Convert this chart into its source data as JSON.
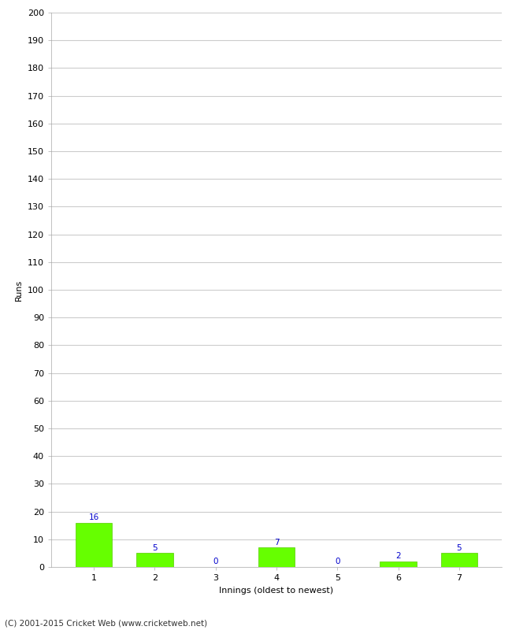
{
  "categories": [
    1,
    2,
    3,
    4,
    5,
    6,
    7
  ],
  "values": [
    16,
    5,
    0,
    7,
    0,
    2,
    5
  ],
  "bar_color": "#66ff00",
  "bar_edge_color": "#55cc00",
  "label_color": "#0000cc",
  "xlabel": "Innings (oldest to newest)",
  "ylabel": "Runs",
  "ylim": [
    0,
    200
  ],
  "yticks": [
    0,
    10,
    20,
    30,
    40,
    50,
    60,
    70,
    80,
    90,
    100,
    110,
    120,
    130,
    140,
    150,
    160,
    170,
    180,
    190,
    200
  ],
  "background_color": "#ffffff",
  "grid_color": "#cccccc",
  "footer": "(C) 2001-2015 Cricket Web (www.cricketweb.net)",
  "label_fontsize": 7.5,
  "axis_tick_fontsize": 8,
  "axis_label_fontsize": 8,
  "footer_fontsize": 7.5
}
